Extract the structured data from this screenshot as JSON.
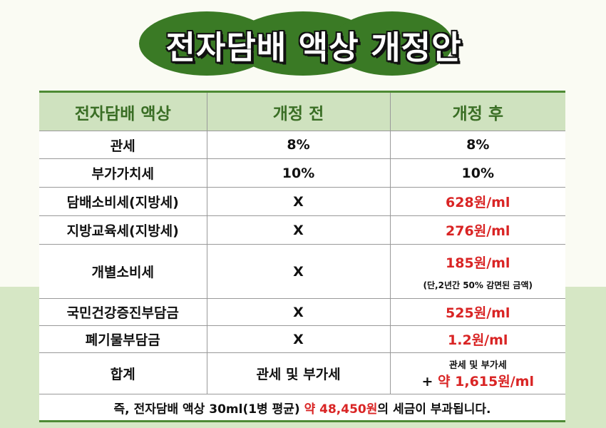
{
  "title": "전자담배 액상 개정안",
  "colors": {
    "title_bg": "#3a7a25",
    "header_bg": "#cfe2bf",
    "header_text": "#3a6e25",
    "accent_red": "#d92424"
  },
  "headers": [
    "전자담배 액상",
    "개정 전",
    "개정 후"
  ],
  "rows": [
    {
      "item": "관세",
      "before": "8%",
      "after": "8%"
    },
    {
      "item": "부가가치세",
      "before": "10%",
      "after": "10%"
    },
    {
      "item": "담배소비세(지방세)",
      "before": "X",
      "after": "628원/ml"
    },
    {
      "item": "지방교육세(지방세)",
      "before": "X",
      "after": "276원/ml"
    },
    {
      "item": "개별소비세",
      "before": "X",
      "after": "185원/ml",
      "note": "(단,2년간 50% 감면된 금액)"
    },
    {
      "item": "국민건강증진부담금",
      "before": "X",
      "after": "525원/ml"
    },
    {
      "item": "폐기물부담금",
      "before": "X",
      "after": "1.2원/ml"
    }
  ],
  "total": {
    "item": "합계",
    "before": "관세 및 부가세",
    "after_line1": "관세 및 부가세",
    "after_plus": "+ ",
    "after_value": "약 1,615원/ml"
  },
  "footer": {
    "prefix": "즉, 전자담배 액상 30ml(1병 평균) ",
    "highlight": "약 48,450원",
    "suffix": "의 세금이 부과됩니다."
  }
}
